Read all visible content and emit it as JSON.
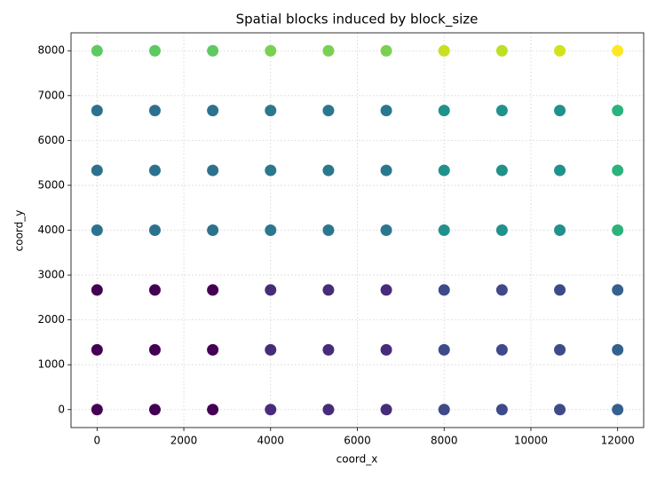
{
  "chart_data": {
    "type": "scatter",
    "title": "Spatial blocks induced by block_size",
    "x_label": "coord_x",
    "y_label": "coord_y",
    "x": [
      0,
      1333.33,
      2666.67,
      4000,
      5333.33,
      6666.67,
      8000,
      9333.33,
      10666.67,
      12000,
      0,
      1333.33,
      2666.67,
      4000,
      5333.33,
      6666.67,
      8000,
      9333.33,
      10666.67,
      12000,
      0,
      1333.33,
      2666.67,
      4000,
      5333.33,
      6666.67,
      8000,
      9333.33,
      10666.67,
      12000,
      0,
      1333.33,
      2666.67,
      4000,
      5333.33,
      6666.67,
      8000,
      9333.33,
      10666.67,
      12000,
      0,
      1333.33,
      2666.67,
      4000,
      5333.33,
      6666.67,
      8000,
      9333.33,
      10666.67,
      12000,
      0,
      1333.33,
      2666.67,
      4000,
      5333.33,
      6666.67,
      8000,
      9333.33,
      10666.67,
      12000,
      0,
      1333.33,
      2666.67,
      4000,
      5333.33,
      6666.67,
      8000,
      9333.33,
      10666.67,
      12000
    ],
    "y": [
      0,
      0,
      0,
      0,
      0,
      0,
      0,
      0,
      0,
      0,
      1333.33,
      1333.33,
      1333.33,
      1333.33,
      1333.33,
      1333.33,
      1333.33,
      1333.33,
      1333.33,
      1333.33,
      2666.67,
      2666.67,
      2666.67,
      2666.67,
      2666.67,
      2666.67,
      2666.67,
      2666.67,
      2666.67,
      2666.67,
      4000,
      4000,
      4000,
      4000,
      4000,
      4000,
      4000,
      4000,
      4000,
      4000,
      5333.33,
      5333.33,
      5333.33,
      5333.33,
      5333.33,
      5333.33,
      5333.33,
      5333.33,
      5333.33,
      5333.33,
      6666.67,
      6666.67,
      6666.67,
      6666.67,
      6666.67,
      6666.67,
      6666.67,
      6666.67,
      6666.67,
      6666.67,
      8000,
      8000,
      8000,
      8000,
      8000,
      8000,
      8000,
      8000,
      8000,
      8000
    ],
    "colors": [
      "#440154",
      "#440154",
      "#440154",
      "#472c7a",
      "#472c7a",
      "#472c7a",
      "#3e4a89",
      "#3e4a89",
      "#3e4a89",
      "#34618d",
      "#440154",
      "#440154",
      "#440154",
      "#472c7a",
      "#472c7a",
      "#472c7a",
      "#3e4a89",
      "#3e4a89",
      "#3e4a89",
      "#34618d",
      "#440154",
      "#440154",
      "#440154",
      "#472c7a",
      "#472c7a",
      "#472c7a",
      "#3e4a89",
      "#3e4a89",
      "#3e4a89",
      "#34618d",
      "#2c728e",
      "#2c728e",
      "#2c728e",
      "#2a788e",
      "#2a788e",
      "#2a788e",
      "#21918c",
      "#21918c",
      "#21918c",
      "#2db27d",
      "#2c728e",
      "#2c728e",
      "#2c728e",
      "#2a788e",
      "#2a788e",
      "#2a788e",
      "#21918c",
      "#21918c",
      "#21918c",
      "#2db27d",
      "#2c728e",
      "#2c728e",
      "#2c728e",
      "#2a788e",
      "#2a788e",
      "#2a788e",
      "#21918c",
      "#21918c",
      "#21918c",
      "#2db27d",
      "#5ec962",
      "#5ec962",
      "#5ec962",
      "#7ad151",
      "#7ad151",
      "#7ad151",
      "#c8e020",
      "#bddf26",
      "#d2e21b",
      "#fde725"
    ],
    "xlim": [
      -600,
      12600
    ],
    "ylim": [
      -400,
      8400
    ],
    "xticks": [
      0,
      2000,
      4000,
      6000,
      8000,
      10000,
      12000
    ],
    "yticks": [
      0,
      1000,
      2000,
      3000,
      4000,
      5000,
      6000,
      7000,
      8000
    ],
    "grid": true
  }
}
